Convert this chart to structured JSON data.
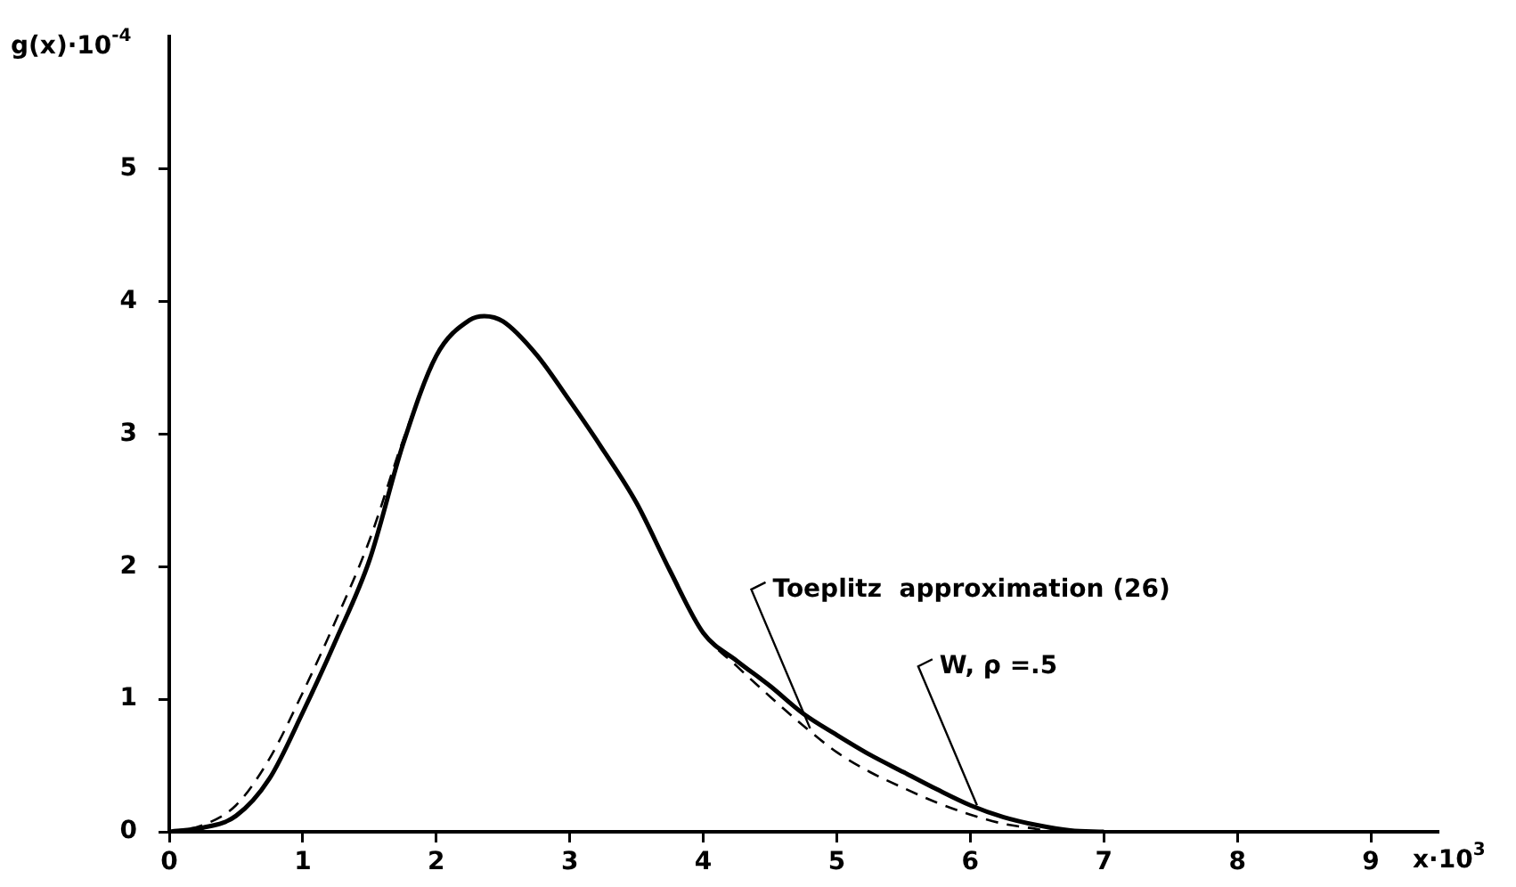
{
  "chart_data": {
    "type": "line",
    "xlabel": "x·10$^{3}$",
    "ylabel": "g(x)·10$^{-4}$",
    "xlim": [
      0,
      9.5
    ],
    "ylim": [
      0,
      6
    ],
    "xticks": [
      0,
      1,
      2,
      3,
      4,
      5,
      6,
      7,
      8,
      9
    ],
    "yticks": [
      0,
      1,
      2,
      3,
      4,
      5
    ],
    "grid": false,
    "legend": false,
    "marker": "none",
    "series": [
      {
        "color": "#000000",
        "line_style": "solid",
        "x": [
          0,
          0.25,
          0.5,
          0.75,
          1,
          1.25,
          1.5,
          1.75,
          2,
          2.25,
          2.36,
          2.5,
          2.75,
          3,
          3.25,
          3.5,
          3.75,
          4,
          4.25,
          4.5,
          4.75,
          5,
          5.25,
          5.5,
          5.75,
          6,
          6.25,
          6.5,
          6.75,
          7
        ],
        "values": [
          0,
          0.03,
          0.12,
          0.4,
          0.9,
          1.45,
          2.05,
          2.92,
          3.59,
          3.86,
          3.89,
          3.85,
          3.6,
          3.25,
          2.88,
          2.48,
          1.97,
          1.5,
          1.29,
          1.1,
          0.89,
          0.73,
          0.58,
          0.45,
          0.32,
          0.2,
          0.11,
          0.05,
          0.01,
          0
        ]
      },
      {
        "color": "#000000",
        "line_style": "dashed",
        "x": [
          0,
          0.25,
          0.5,
          0.75,
          1,
          1.25,
          1.5,
          1.75,
          2,
          2.25,
          2.36,
          2.5,
          2.75,
          3,
          3.25,
          3.5,
          3.75,
          4,
          4.25,
          4.5,
          4.75,
          5,
          5.25,
          5.5,
          5.75,
          6,
          6.25,
          6.5,
          6.6
        ],
        "values": [
          0,
          0.05,
          0.2,
          0.55,
          1.05,
          1.6,
          2.2,
          2.95,
          3.59,
          3.86,
          3.89,
          3.85,
          3.6,
          3.25,
          2.88,
          2.48,
          1.97,
          1.5,
          1.25,
          1.02,
          0.8,
          0.6,
          0.45,
          0.33,
          0.22,
          0.13,
          0.06,
          0.02,
          0
        ]
      }
    ],
    "annotations": [
      {
        "text": "Toeplitz  approximation (26)",
        "x": 4.8,
        "y": 0.78
      },
      {
        "text": "W, ρ =.5",
        "x": 6.05,
        "y": 0.2
      }
    ]
  }
}
